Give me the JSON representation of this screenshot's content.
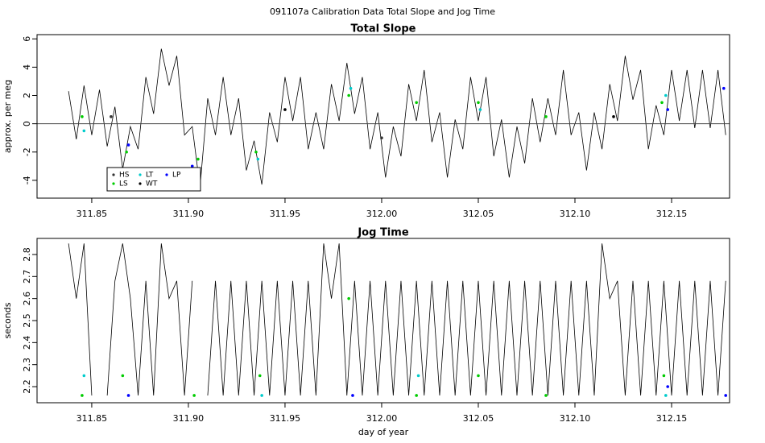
{
  "title": "091107a   Calibration Data Total Slope and Jog Time",
  "chart_data": [
    {
      "type": "line",
      "title": "Total Slope",
      "ylabel": "approx. per meg",
      "xlim": [
        311.8217,
        312.18
      ],
      "ylim": [
        -5.26,
        6.3
      ],
      "xticks": [
        311.85,
        {
          "value": 311.9,
          "label": "311.90"
        },
        311.95,
        {
          "value": 312,
          "label": "312.00"
        },
        312.05,
        {
          "value": 312.1,
          "label": "312.10"
        },
        312.15
      ],
      "yticks": [
        -4,
        -2,
        0,
        2,
        4,
        6
      ],
      "hline": 0,
      "legend": "bottom-left",
      "color": "#000000",
      "x": [
        311.838,
        311.842,
        311.846,
        311.85,
        311.854,
        311.858,
        311.862,
        311.866,
        311.87,
        311.874,
        311.878,
        311.882,
        311.886,
        311.89,
        311.894,
        311.898,
        311.902,
        311.906,
        311.91,
        311.914,
        311.918,
        311.922,
        311.926,
        311.93,
        311.934,
        311.938,
        311.942,
        311.946,
        311.95,
        311.954,
        311.958,
        311.962,
        311.966,
        311.97,
        311.974,
        311.978,
        311.982,
        311.986,
        311.99,
        311.994,
        311.998,
        312.002,
        312.006,
        312.01,
        312.014,
        312.018,
        312.022,
        312.026,
        312.03,
        312.034,
        312.038,
        312.042,
        312.046,
        312.05,
        312.054,
        312.058,
        312.062,
        312.066,
        312.07,
        312.074,
        312.078,
        312.082,
        312.086,
        312.09,
        312.094,
        312.098,
        312.102,
        312.106,
        312.11,
        312.114,
        312.118,
        312.122,
        312.126,
        312.13,
        312.134,
        312.138,
        312.142,
        312.146,
        312.15,
        312.154,
        312.158,
        312.162,
        312.166,
        312.17,
        312.174,
        312.178
      ],
      "values": [
        2.3,
        -1.1,
        2.7,
        -0.8,
        2.4,
        -1.6,
        1.2,
        -3.2,
        -0.2,
        -1.8,
        3.3,
        0.7,
        5.3,
        2.7,
        4.8,
        -0.8,
        -0.2,
        -4.5,
        1.8,
        -0.8,
        3.3,
        -0.8,
        1.8,
        -3.3,
        -1.2,
        -4.3,
        0.8,
        -1.3,
        3.3,
        0.2,
        3.3,
        -1.8,
        0.8,
        -1.8,
        2.8,
        0.2,
        4.3,
        0.7,
        3.3,
        -1.8,
        0.8,
        -3.8,
        -0.2,
        -2.3,
        2.8,
        0.2,
        3.8,
        -1.3,
        0.8,
        -3.8,
        0.3,
        -1.8,
        3.3,
        0.2,
        3.3,
        -2.3,
        0.3,
        -3.8,
        -0.2,
        -2.8,
        1.8,
        -1.3,
        1.8,
        -0.8,
        3.8,
        -0.8,
        0.8,
        -3.3,
        0.8,
        -1.8,
        2.8,
        0.2,
        4.8,
        1.7,
        3.8,
        -1.8,
        1.3,
        -0.8,
        3.8,
        0.2,
        3.8,
        -0.3,
        3.8,
        -0.3,
        3.8,
        -0.8
      ],
      "series": [
        {
          "name": "HS",
          "color": "#333333",
          "x": [
            311.86,
            312.0
          ],
          "values": [
            0.5,
            -1
          ]
        },
        {
          "name": "LS",
          "color": "#00cc00",
          "x": [
            311.845,
            311.868,
            311.905,
            311.935,
            311.983,
            312.018,
            312.05,
            312.085,
            312.145
          ],
          "values": [
            0.5,
            -2,
            -2.5,
            -2,
            2,
            1.5,
            1.5,
            0.5,
            1.5
          ]
        },
        {
          "name": "LT",
          "color": "#00cccc",
          "x": [
            311.846,
            311.936,
            311.984,
            312.051,
            312.147
          ],
          "values": [
            -0.5,
            -2.5,
            2.5,
            1,
            2
          ]
        },
        {
          "name": "WT",
          "color": "#000000",
          "x": [
            311.95,
            312.12
          ],
          "values": [
            1,
            0.5
          ]
        },
        {
          "name": "LP",
          "color": "#0000ff",
          "x": [
            311.869,
            311.902,
            312.148,
            312.177
          ],
          "values": [
            -1.5,
            -3,
            1,
            2.5
          ]
        }
      ]
    },
    {
      "type": "line",
      "title": "Jog Time",
      "ylabel": "seconds",
      "xlabel": "day of year",
      "xlim": [
        311.8217,
        312.18
      ],
      "ylim": [
        2.127,
        2.873
      ],
      "xticks": [
        311.85,
        {
          "value": 311.9,
          "label": "311.90"
        },
        311.95,
        {
          "value": 312,
          "label": "312.00"
        },
        312.05,
        {
          "value": 312.1,
          "label": "312.10"
        },
        312.15
      ],
      "yticks": [
        2.2,
        2.3,
        2.4,
        2.5,
        2.6,
        2.7,
        2.8
      ],
      "color": "#000000",
      "x": [
        311.838,
        311.842,
        311.846,
        311.85,
        311.854,
        311.858,
        311.862,
        311.866,
        311.87,
        311.874,
        311.878,
        311.882,
        311.886,
        311.89,
        311.894,
        311.898,
        311.902,
        311.906,
        311.91,
        311.914,
        311.918,
        311.922,
        311.926,
        311.93,
        311.934,
        311.938,
        311.942,
        311.946,
        311.95,
        311.954,
        311.958,
        311.962,
        311.966,
        311.97,
        311.974,
        311.978,
        311.982,
        311.986,
        311.99,
        311.994,
        311.998,
        312.002,
        312.006,
        312.01,
        312.014,
        312.018,
        312.022,
        312.026,
        312.03,
        312.034,
        312.038,
        312.042,
        312.046,
        312.05,
        312.054,
        312.058,
        312.062,
        312.066,
        312.07,
        312.074,
        312.078,
        312.082,
        312.086,
        312.09,
        312.094,
        312.098,
        312.102,
        312.106,
        312.11,
        312.114,
        312.118,
        312.122,
        312.126,
        312.13,
        312.134,
        312.138,
        312.142,
        312.146,
        312.15,
        312.154,
        312.158,
        312.162,
        312.166,
        312.17,
        312.174,
        312.178
      ],
      "values": [
        2.85,
        2.6,
        2.85,
        2.16,
        null,
        2.16,
        2.68,
        2.85,
        2.6,
        2.16,
        2.68,
        2.16,
        2.85,
        2.6,
        2.68,
        2.16,
        2.68,
        null,
        2.16,
        2.68,
        2.16,
        2.68,
        2.16,
        2.68,
        2.16,
        2.68,
        2.16,
        2.68,
        2.16,
        2.68,
        2.16,
        2.68,
        2.16,
        2.85,
        2.6,
        2.85,
        2.16,
        2.68,
        2.16,
        2.68,
        2.16,
        2.68,
        2.16,
        2.68,
        2.16,
        2.68,
        2.16,
        2.68,
        2.16,
        2.68,
        2.16,
        2.68,
        2.16,
        2.68,
        2.16,
        2.68,
        2.16,
        2.68,
        2.16,
        2.68,
        2.16,
        2.68,
        2.16,
        2.68,
        2.16,
        2.68,
        2.16,
        2.68,
        2.16,
        2.85,
        2.6,
        2.68,
        2.16,
        2.68,
        2.16,
        2.68,
        2.16,
        2.68,
        2.16,
        2.68,
        2.16,
        2.68,
        2.16,
        2.68,
        2.16,
        2.68
      ],
      "series": [
        {
          "color": "#00cc00",
          "x": [
            311.845,
            311.866,
            311.903,
            311.937,
            311.983,
            312.018,
            312.05,
            312.085,
            312.146
          ],
          "values": [
            2.16,
            2.25,
            2.16,
            2.25,
            2.6,
            2.16,
            2.25,
            2.16,
            2.25
          ]
        },
        {
          "color": "#00cccc",
          "x": [
            311.846,
            311.938,
            312.019,
            312.147
          ],
          "values": [
            2.25,
            2.16,
            2.25,
            2.16
          ]
        },
        {
          "color": "#0000ff",
          "x": [
            311.869,
            311.985,
            312.148,
            312.178
          ],
          "values": [
            2.16,
            2.16,
            2.2,
            2.16
          ]
        }
      ]
    }
  ]
}
